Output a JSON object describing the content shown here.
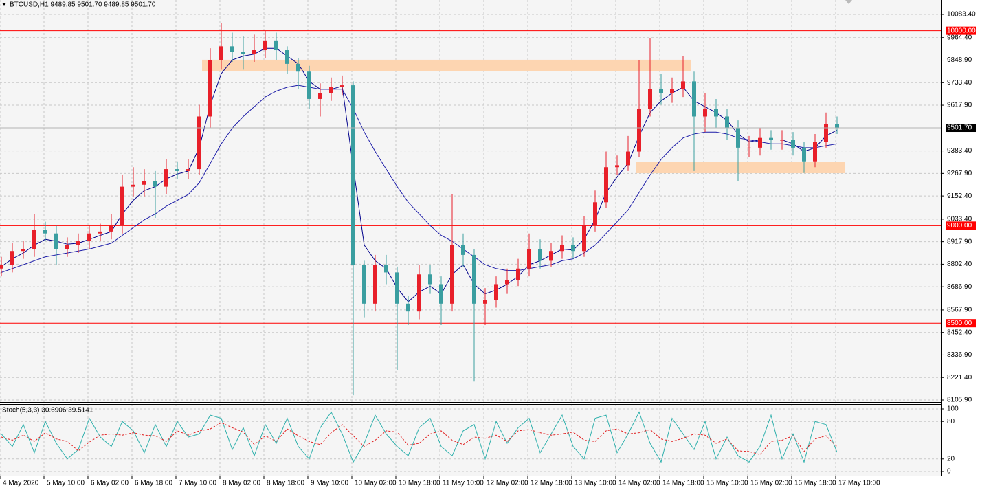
{
  "chart_data": [
    {
      "type": "candlestick",
      "title": "BTCUSD,H1  9489.85 9501.70 9489.85 9501.70",
      "x": [
        0,
        4,
        8,
        12,
        16,
        20,
        24,
        28,
        32,
        36,
        40,
        44,
        48,
        52,
        56,
        60,
        64,
        68,
        72,
        76,
        80,
        84,
        88,
        92,
        96,
        100,
        104,
        108,
        112,
        116,
        120,
        124,
        128,
        132,
        136,
        140,
        144,
        148,
        152,
        156,
        160,
        164,
        168,
        172,
        176,
        180,
        184,
        188,
        192,
        196,
        200,
        204,
        208,
        212,
        216,
        220,
        224,
        228,
        232,
        236,
        240,
        244,
        248,
        252,
        256,
        260,
        264,
        268,
        272,
        276,
        280,
        284,
        288,
        292,
        296,
        300,
        304
      ],
      "open": [
        8780,
        8800,
        8870,
        8880,
        8980,
        8960,
        8880,
        8900,
        8920,
        8960,
        8970,
        9000,
        9200,
        9210,
        9230,
        9200,
        9290,
        9280,
        9290,
        9560,
        9850,
        9920,
        9890,
        9880,
        9900,
        9950,
        9900,
        9830,
        9790,
        9650,
        9680,
        9710,
        9720,
        8800,
        8600,
        8800,
        8760,
        8600,
        8560,
        8750,
        8700,
        8600,
        8900,
        8850,
        8600,
        8620,
        8700,
        8720,
        8780,
        8880,
        8820,
        8870,
        8900,
        8870,
        9000,
        9120,
        9300,
        9310,
        9380,
        9600,
        9700,
        9680,
        9700,
        9740,
        9560,
        9600,
        9560,
        9500,
        9400,
        9400,
        9450,
        9440,
        9440,
        9400,
        9330,
        9430,
        9520
      ],
      "high": [
        8840,
        8910,
        8920,
        9060,
        9020,
        9000,
        8940,
        8960,
        9000,
        9010,
        9060,
        9260,
        9300,
        9290,
        9280,
        9340,
        9330,
        9340,
        9620,
        9910,
        10040,
        9990,
        9970,
        9980,
        10000,
        9990,
        9920,
        9860,
        9820,
        9730,
        9760,
        9770,
        9740,
        8820,
        8850,
        8850,
        8790,
        8640,
        8800,
        8800,
        8740,
        9160,
        8960,
        8880,
        8680,
        8740,
        8780,
        8830,
        8960,
        8930,
        8910,
        8950,
        8940,
        9050,
        9180,
        9380,
        9360,
        9460,
        9850,
        9960,
        9780,
        9760,
        9870,
        9790,
        9680,
        9650,
        9600,
        9540,
        9460,
        9500,
        9490,
        9490,
        9480,
        9430,
        9470,
        9580,
        9560
      ],
      "low": [
        8740,
        8760,
        8830,
        8840,
        8920,
        8800,
        8840,
        8860,
        8880,
        8920,
        8930,
        8960,
        9150,
        9150,
        9040,
        9160,
        9240,
        9240,
        9260,
        9500,
        9800,
        9840,
        9800,
        9840,
        9860,
        9850,
        9780,
        9700,
        9600,
        9560,
        9640,
        9670,
        8130,
        8530,
        8560,
        8700,
        8260,
        8490,
        8520,
        8650,
        8490,
        8560,
        8790,
        8200,
        8490,
        8580,
        8650,
        8690,
        8740,
        8780,
        8790,
        8830,
        8830,
        8840,
        8970,
        9090,
        9260,
        9280,
        9350,
        9560,
        9620,
        9630,
        9660,
        9280,
        9480,
        9500,
        9440,
        9230,
        9350,
        9360,
        9390,
        9390,
        9360,
        9270,
        9300,
        9400,
        9470
      ],
      "close": [
        8800,
        8870,
        8880,
        8980,
        8960,
        8880,
        8900,
        8920,
        8960,
        8970,
        9000,
        9200,
        9210,
        9230,
        9200,
        9290,
        9280,
        9290,
        9560,
        9850,
        9920,
        9890,
        9880,
        9900,
        9950,
        9900,
        9830,
        9790,
        9650,
        9680,
        9710,
        9720,
        8800,
        8600,
        8800,
        8760,
        8600,
        8560,
        8750,
        8700,
        8600,
        8900,
        8850,
        8600,
        8620,
        8700,
        8720,
        8780,
        8880,
        8820,
        8870,
        8900,
        8870,
        9000,
        9120,
        9300,
        9310,
        9380,
        9600,
        9700,
        9680,
        9700,
        9740,
        9560,
        9600,
        9560,
        9500,
        9400,
        9400,
        9450,
        9440,
        9440,
        9400,
        9330,
        9430,
        9520,
        9501.7
      ],
      "up_color": "#e8202a",
      "down_color": "#3a9ea0",
      "series": [
        {
          "color": "#00008b",
          "values": [
            8790,
            8830,
            8860,
            8900,
            8930,
            8920,
            8905,
            8910,
            8930,
            8950,
            8970,
            9060,
            9130,
            9180,
            9200,
            9240,
            9265,
            9280,
            9400,
            9620,
            9780,
            9850,
            9870,
            9880,
            9910,
            9910,
            9870,
            9830,
            9740,
            9700,
            9700,
            9715,
            9300,
            8900,
            8820,
            8780,
            8680,
            8610,
            8660,
            8690,
            8650,
            8750,
            8800,
            8700,
            8650,
            8670,
            8700,
            8740,
            8800,
            8820,
            8850,
            8880,
            8875,
            8930,
            9030,
            9170,
            9250,
            9320,
            9460,
            9580,
            9640,
            9680,
            9710,
            9640,
            9610,
            9580,
            9540,
            9470,
            9430,
            9440,
            9440,
            9440,
            9420,
            9380,
            9400,
            9460,
            9490
          ]
        },
        {
          "color": "#1c1ca8",
          "values": [
            8760,
            8780,
            8800,
            8820,
            8840,
            8850,
            8860,
            8870,
            8880,
            8895,
            8910,
            8950,
            8990,
            9030,
            9060,
            9100,
            9130,
            9160,
            9220,
            9320,
            9420,
            9500,
            9560,
            9610,
            9660,
            9690,
            9710,
            9720,
            9710,
            9700,
            9700,
            9700,
            9600,
            9480,
            9380,
            9290,
            9200,
            9120,
            9060,
            9000,
            8950,
            8920,
            8880,
            8840,
            8800,
            8780,
            8770,
            8770,
            8780,
            8790,
            8800,
            8820,
            8830,
            8860,
            8900,
            8960,
            9020,
            9080,
            9170,
            9260,
            9340,
            9400,
            9450,
            9470,
            9480,
            9480,
            9470,
            9450,
            9440,
            9430,
            9420,
            9420,
            9410,
            9400,
            9400,
            9410,
            9420
          ]
        }
      ],
      "zones": [
        {
          "x": [
            73,
            251
          ],
          "y": [
            9791,
            9851
          ]
        },
        {
          "x": [
            231,
            307
          ],
          "y": [
            9269,
            9329
          ]
        }
      ],
      "zone_color": "#fdd5b1",
      "levels": [
        {
          "value": 10000,
          "label": "10000.00"
        },
        {
          "value": 9000,
          "label": "9000.00"
        },
        {
          "value": 8500,
          "label": "8500.00"
        }
      ],
      "level_color": "#ff0000",
      "current": {
        "value": 9501.7,
        "label": "9501.70"
      },
      "xlim": [
        -0.5,
        342
      ],
      "ylim": [
        8095.3,
        10157.4
      ],
      "yticks": [
        {
          "value": 10083.4,
          "label": "10083.40"
        },
        {
          "value": 9964.4,
          "label": "9964.40"
        },
        {
          "value": 9848.9,
          "label": "9848.90"
        },
        {
          "value": 9733.4,
          "label": "9733.40"
        },
        {
          "value": 9617.9,
          "label": "9617.90"
        },
        {
          "value": 9383.4,
          "label": "9383.40"
        },
        {
          "value": 9267.9,
          "label": "9267.90"
        },
        {
          "value": 9152.4,
          "label": "9152.40"
        },
        {
          "value": 9033.4,
          "label": "9033.40"
        },
        {
          "value": 8917.9,
          "label": "8917.90"
        },
        {
          "value": 8802.4,
          "label": "8802.40"
        },
        {
          "value": 8686.9,
          "label": "8686.90"
        },
        {
          "value": 8567.9,
          "label": "8567.90"
        },
        {
          "value": 8452.4,
          "label": "8452.40"
        },
        {
          "value": 8336.9,
          "label": "8336.90"
        },
        {
          "value": 8221.4,
          "label": "8221.40"
        },
        {
          "value": 8105.9,
          "label": "8105.90"
        }
      ],
      "grid": true
    },
    {
      "type": "line",
      "title": "Stoch(5,3,3) 30.6906 39.5141",
      "series": [
        {
          "color": "#2fb0ac",
          "values": [
            60,
            40,
            75,
            30,
            80,
            45,
            20,
            35,
            85,
            55,
            40,
            80,
            65,
            30,
            75,
            40,
            80,
            55,
            60,
            90,
            85,
            35,
            70,
            25,
            75,
            45,
            85,
            40,
            20,
            70,
            95,
            60,
            15,
            45,
            90,
            60,
            40,
            25,
            70,
            85,
            40,
            25,
            65,
            75,
            20,
            80,
            45,
            70,
            85,
            30,
            60,
            90,
            40,
            20,
            85,
            90,
            30,
            60,
            95,
            45,
            15,
            85,
            60,
            35,
            80,
            20,
            55,
            25,
            15,
            40,
            90,
            20,
            60,
            15,
            80,
            75,
            30.6906
          ]
        },
        {
          "color": "#e02020",
          "dash": true,
          "values": [
            55,
            50,
            58,
            48,
            62,
            52,
            48,
            33,
            47,
            58,
            60,
            58,
            62,
            58,
            57,
            48,
            65,
            58,
            65,
            68,
            78,
            70,
            63,
            43,
            57,
            48,
            68,
            57,
            48,
            43,
            62,
            75,
            57,
            40,
            50,
            65,
            63,
            42,
            45,
            60,
            65,
            50,
            43,
            55,
            53,
            58,
            48,
            65,
            67,
            62,
            58,
            60,
            63,
            50,
            48,
            65,
            68,
            60,
            62,
            67,
            52,
            48,
            53,
            60,
            58,
            45,
            52,
            33,
            32,
            27,
            48,
            50,
            57,
            32,
            52,
            57,
            39.5141
          ]
        }
      ],
      "ylim": [
        -6.6,
        107.7
      ],
      "yticks": [
        100,
        80,
        20,
        0
      ],
      "xticks": [
        {
          "value": -0.5,
          "label": "4 May 2020"
        },
        {
          "value": 15.5,
          "label": "5 May 10:00"
        },
        {
          "value": 31.5,
          "label": "6 May 02:00"
        },
        {
          "value": 47.5,
          "label": "6 May 18:00"
        },
        {
          "value": 63.5,
          "label": "7 May 10:00"
        },
        {
          "value": 79.5,
          "label": "8 May 02:00"
        },
        {
          "value": 95.5,
          "label": "8 May 18:00"
        },
        {
          "value": 111.5,
          "label": "9 May 10:00"
        },
        {
          "value": 127.5,
          "label": "10 May 02:00"
        },
        {
          "value": 143.5,
          "label": "10 May 18:00"
        },
        {
          "value": 159.5,
          "label": "11 May 10:00"
        },
        {
          "value": 175.5,
          "label": "12 May 02:00"
        },
        {
          "value": 191.5,
          "label": "12 May 18:00"
        },
        {
          "value": 207.5,
          "label": "13 May 10:00"
        },
        {
          "value": 223.5,
          "label": "14 May 02:00"
        },
        {
          "value": 239.5,
          "label": "14 May 18:00"
        },
        {
          "value": 255.5,
          "label": "15 May 10:00"
        },
        {
          "value": 271.5,
          "label": "16 May 02:00"
        },
        {
          "value": 287.5,
          "label": "16 May 18:00"
        },
        {
          "value": 303.5,
          "label": "17 May 10:00"
        }
      ],
      "grid": true
    }
  ]
}
